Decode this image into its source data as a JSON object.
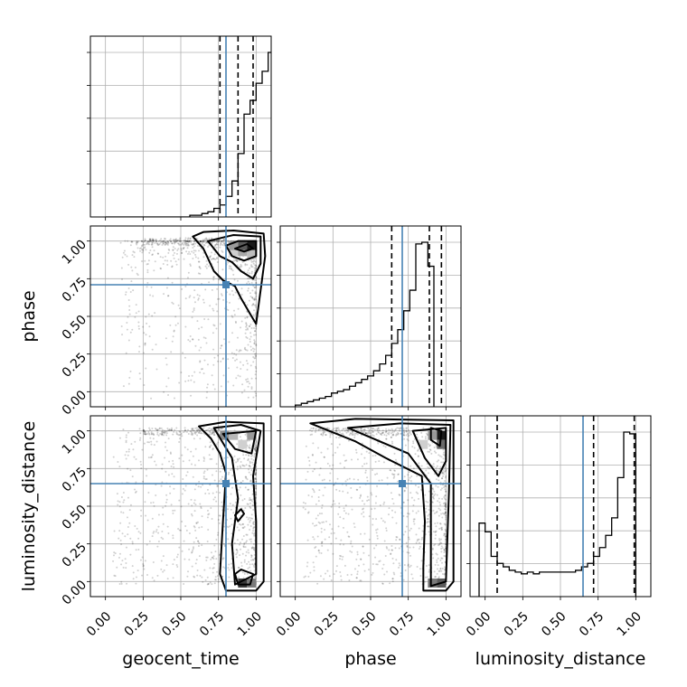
{
  "chart_data": {
    "type": "corner",
    "parameters": [
      "geocent_time",
      "phase",
      "luminosity_distance"
    ],
    "tick_labels": [
      "0.00",
      "0.25",
      "0.50",
      "0.75",
      "1.00"
    ],
    "range": [
      -0.1,
      1.1
    ],
    "grid": true,
    "truths": {
      "geocent_time": 0.8,
      "phase": 0.71,
      "luminosity_distance": 0.65
    },
    "quantiles": {
      "geocent_time": [
        0.76,
        0.88,
        0.98
      ],
      "phase": [
        0.64,
        0.89,
        0.97
      ],
      "luminosity_distance": [
        0.08,
        0.72,
        0.99
      ]
    },
    "histograms": {
      "geocent_time": {
        "edges_start": 0.0,
        "bin_width": 0.04,
        "counts": [
          0,
          0,
          0,
          0,
          0,
          0,
          0,
          0,
          0,
          0,
          0,
          0,
          0,
          0,
          0.01,
          0.01,
          0.02,
          0.03,
          0.05,
          0.07,
          0.12,
          0.21,
          0.37,
          0.6,
          0.68,
          0.78,
          0.85,
          0.96,
          0.93,
          0.38
        ]
      },
      "phase": {
        "edges_start": 0.0,
        "bin_width": 0.04,
        "counts": [
          0.01,
          0.02,
          0.03,
          0.04,
          0.05,
          0.06,
          0.08,
          0.09,
          0.1,
          0.12,
          0.14,
          0.16,
          0.18,
          0.21,
          0.25,
          0.3,
          0.37,
          0.45,
          0.56,
          0.68,
          0.95,
          0.96,
          0.82
        ]
      },
      "luminosity_distance": {
        "edges_start": -0.04,
        "bin_width": 0.04,
        "counts": [
          0.42,
          0.37,
          0.23,
          0.19,
          0.17,
          0.15,
          0.14,
          0.13,
          0.14,
          0.13,
          0.14,
          0.14,
          0.14,
          0.14,
          0.14,
          0.14,
          0.15,
          0.17,
          0.19,
          0.23,
          0.28,
          0.35,
          0.45,
          0.68,
          0.94,
          0.93
        ]
      }
    }
  }
}
